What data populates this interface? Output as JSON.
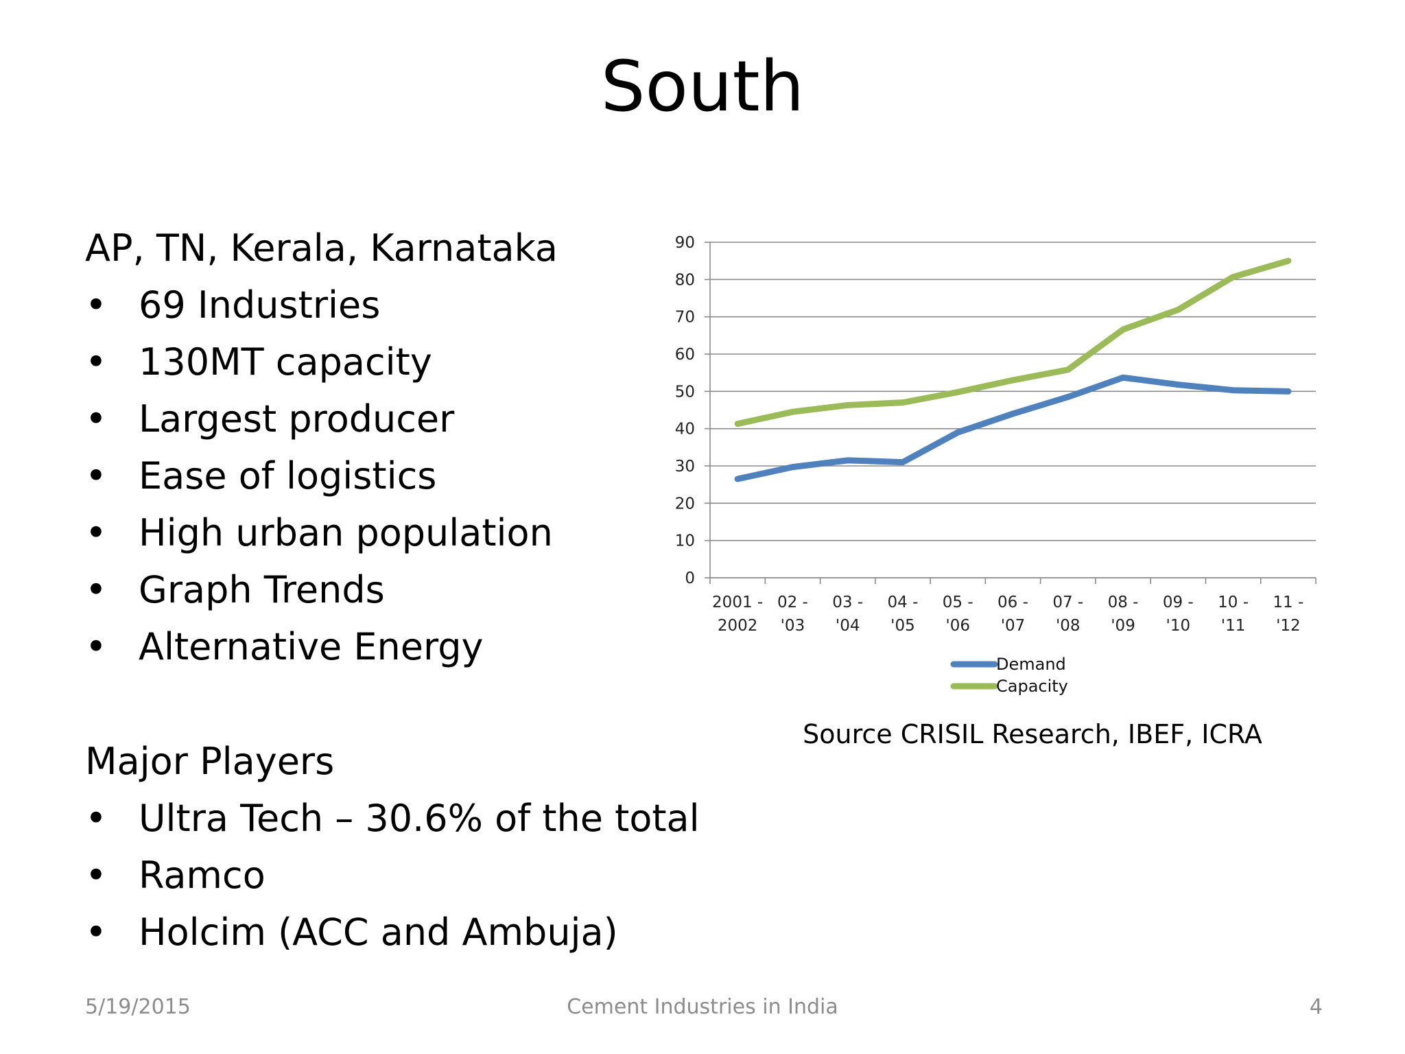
{
  "slide": {
    "title": "South",
    "region_heading": "AP, TN, Kerala, Karnataka",
    "region_bullets": [
      "69 Industries",
      "130MT capacity",
      "Largest producer",
      "Ease of logistics",
      "High urban population",
      "Graph Trends",
      "Alternative Energy"
    ],
    "players_heading": "Major Players",
    "players_bullets": [
      "Ultra Tech – 30.6% of the total",
      "Ramco",
      "Holcim (ACC and Ambuja)"
    ],
    "bullet_symbol": "•",
    "source": "Source CRISIL Research, IBEF, ICRA",
    "footer": {
      "date": "5/19/2015",
      "center": "Cement Industries in India",
      "page": "4"
    }
  },
  "chart_data": {
    "type": "line",
    "title": "",
    "xlabel": "",
    "ylabel": "",
    "categories": [
      [
        "2001 -",
        "2002"
      ],
      [
        "02 -",
        "'03"
      ],
      [
        "03 -",
        "'04"
      ],
      [
        "04 -",
        "'05"
      ],
      [
        "05 -",
        "'06"
      ],
      [
        "06 -",
        "'07"
      ],
      [
        "07 -",
        "'08"
      ],
      [
        "08 -",
        "'09"
      ],
      [
        "09 -",
        "'10"
      ],
      [
        "10 -",
        "'11"
      ],
      [
        "11 -",
        "'12"
      ]
    ],
    "ylim": [
      0,
      90
    ],
    "yticks": [
      0,
      10,
      20,
      30,
      40,
      50,
      60,
      70,
      80,
      90
    ],
    "grid": true,
    "legend_position": "bottom",
    "series": [
      {
        "name": "Demand",
        "color": "#4f81bd",
        "values": [
          26.5,
          29.7,
          31.5,
          31,
          39,
          44,
          48.5,
          53.7,
          51.8,
          50.3,
          50
        ]
      },
      {
        "name": "Capacity",
        "color": "#9bbb59",
        "values": [
          41.3,
          44.5,
          46.3,
          47,
          49.8,
          53,
          55.8,
          66.6,
          71.9,
          80.7,
          85
        ]
      }
    ]
  }
}
